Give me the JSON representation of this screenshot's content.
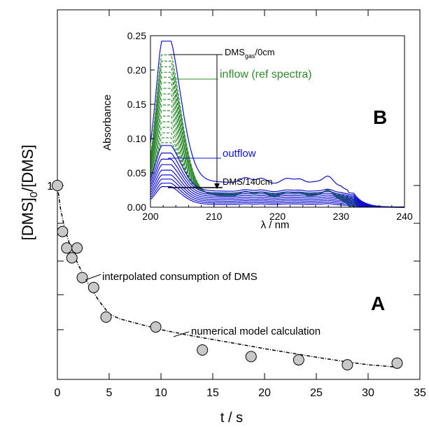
{
  "chart_data": [
    {
      "panel_label": "A",
      "type": "scatter",
      "xlabel": "t / s",
      "ylabel": "[DMS]0/[DMS]",
      "xlim": [
        0,
        35
      ],
      "x_ticks": [
        "0",
        "5",
        "10",
        "15",
        "20",
        "25",
        "30",
        "35"
      ],
      "y_ticks": [
        "1"
      ],
      "series": [
        {
          "marker": "circle",
          "color": "#c8c8c8",
          "points": [
            [
              0.0,
              1.0
            ],
            [
              0.5,
              0.86
            ],
            [
              0.9,
              0.81
            ],
            [
              1.4,
              0.78
            ],
            [
              1.9,
              0.81
            ],
            [
              2.4,
              0.72
            ],
            [
              3.5,
              0.69
            ],
            [
              4.7,
              0.6
            ],
            [
              9.5,
              0.57
            ],
            [
              14.0,
              0.5
            ],
            [
              18.7,
              0.48
            ],
            [
              23.3,
              0.47
            ],
            [
              28.0,
              0.455
            ],
            [
              32.8,
              0.46
            ]
          ]
        },
        {
          "name": "numerical model calculation",
          "type": "line",
          "style": "dashed",
          "color": "#000000",
          "points": [
            [
              0,
              1.0
            ],
            [
              0.3,
              0.93
            ],
            [
              0.7,
              0.87
            ],
            [
              1.2,
              0.82
            ],
            [
              2,
              0.76
            ],
            [
              3,
              0.7
            ],
            [
              4,
              0.65
            ],
            [
              5,
              0.61
            ],
            [
              6,
              0.595
            ],
            [
              8,
              0.578
            ],
            [
              10,
              0.562
            ],
            [
              12.5,
              0.546
            ],
            [
              15,
              0.532
            ],
            [
              17.5,
              0.518
            ],
            [
              20,
              0.504
            ],
            [
              22.5,
              0.491
            ],
            [
              25,
              0.478
            ],
            [
              27.5,
              0.466
            ],
            [
              30,
              0.455
            ],
            [
              32.8,
              0.448
            ]
          ]
        }
      ],
      "annotations": [
        "interpolated consumption of DMS",
        "numerical model calculation"
      ]
    },
    {
      "panel_label": "B",
      "type": "line",
      "xlabel": "λ / nm",
      "ylabel": "Absorbance",
      "xlim": [
        200,
        240
      ],
      "ylim": [
        0,
        0.25
      ],
      "x_ticks": [
        "200",
        "210",
        "220",
        "230",
        "240"
      ],
      "y_ticks": [
        "0.00",
        "0.05",
        "0.10",
        "0.15",
        "0.20",
        "0.25"
      ],
      "peak_wavelength": 202.3,
      "spectra_groups": [
        {
          "name": "inflow (ref spectra)",
          "color": "#2e8b2e",
          "style": "dashed",
          "peak_values": [
            0.222,
            0.212,
            0.203,
            0.194,
            0.186,
            0.177,
            0.168,
            0.159,
            0.15,
            0.141,
            0.132,
            0.123,
            0.114,
            0.105,
            0.096,
            0.088,
            0.08
          ]
        },
        {
          "name": "outflow",
          "color": "#1010d0",
          "style": "solid",
          "peak_values": [
            0.222,
            0.072,
            0.063,
            0.056,
            0.05,
            0.044,
            0.039,
            0.035,
            0.031,
            0.028
          ]
        }
      ],
      "annotations": [
        {
          "text": "DMS",
          "sub": "gas",
          "suffix": "/0cm"
        },
        {
          "text": "inflow (ref spectra)"
        },
        {
          "text": "outflow"
        },
        {
          "text": "DMS/140cm"
        }
      ]
    }
  ]
}
